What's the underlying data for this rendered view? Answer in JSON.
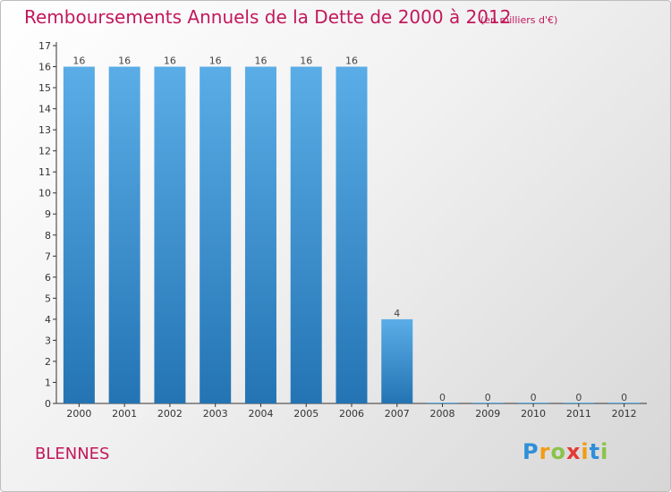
{
  "title": "Remboursements Annuels de la Dette de 2000 à 2012",
  "unit_note": "(en milliers d'€)",
  "commune": "BLENNES",
  "logo": {
    "letters": [
      "P",
      "r",
      "o",
      "x",
      "i",
      "t",
      "i"
    ],
    "colors": [
      "#2f8fd8",
      "#f39c12",
      "#8bc34a",
      "#e53935",
      "#f39c12",
      "#2f8fd8",
      "#8bc34a"
    ]
  },
  "colors": {
    "title": "#c2185b",
    "bar_light": "#5aade6",
    "bar_dark": "#2474b4"
  },
  "chart_data": {
    "type": "bar",
    "categories": [
      "2000",
      "2001",
      "2002",
      "2003",
      "2004",
      "2005",
      "2006",
      "2007",
      "2008",
      "2009",
      "2010",
      "2011",
      "2012"
    ],
    "values": [
      16,
      16,
      16,
      16,
      16,
      16,
      16,
      4,
      0,
      0,
      0,
      0,
      0
    ],
    "data_labels": [
      "16",
      "16",
      "16",
      "16",
      "16",
      "16",
      "16",
      "4",
      "0",
      "0",
      "0",
      "0",
      "0"
    ],
    "title": "Remboursements Annuels de la Dette de 2000 à 2012",
    "ylim": [
      0,
      17
    ],
    "yticks": [
      0,
      1,
      2,
      3,
      4,
      5,
      6,
      7,
      8,
      9,
      10,
      11,
      12,
      13,
      14,
      15,
      16,
      17
    ],
    "grid": false,
    "legend": "none"
  }
}
